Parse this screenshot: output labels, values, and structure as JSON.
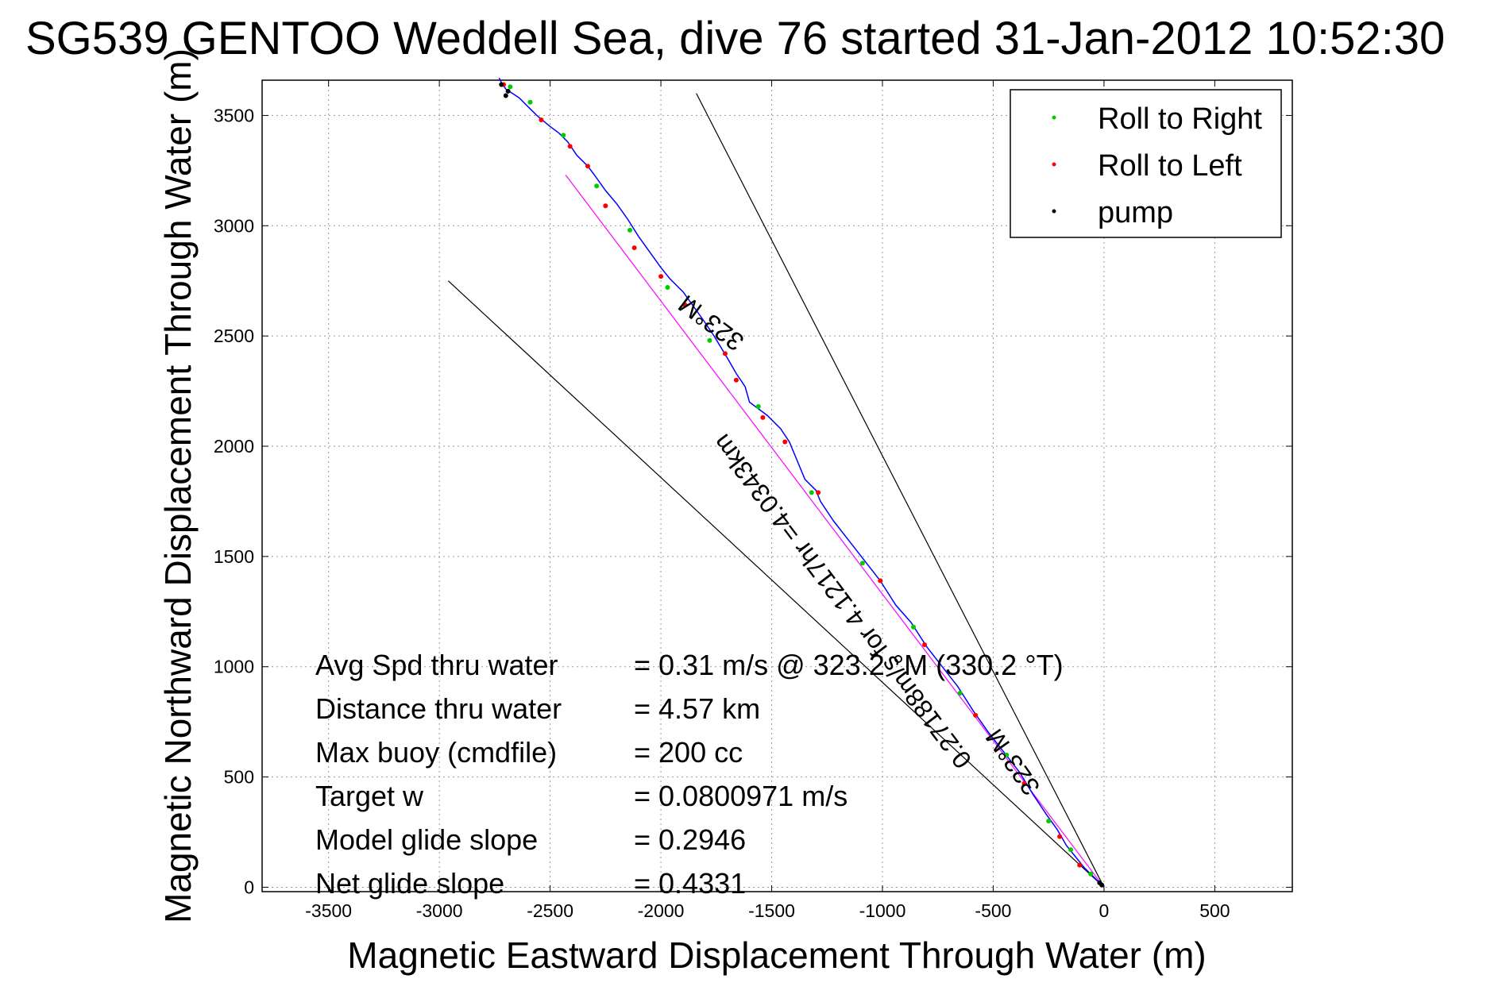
{
  "chart_data": {
    "type": "line",
    "title": "SG539 GENTOO Weddell Sea, dive 76 started 31-Jan-2012 10:52:30",
    "xlabel": "Magnetic Eastward Displacement Through Water (m)",
    "ylabel": "Magnetic Northward Displacement Through Water (m)",
    "xlim": [
      -3800,
      850
    ],
    "ylim": [
      -20,
      3660
    ],
    "xticks": [
      -3500,
      -3000,
      -2500,
      -2000,
      -1500,
      -1000,
      -500,
      0,
      500
    ],
    "yticks": [
      0,
      500,
      1000,
      1500,
      2000,
      2500,
      3000,
      3500
    ],
    "grid": true,
    "legend_position": "top-right",
    "legend": [
      {
        "label": "Roll to Right",
        "color": "#00cc00"
      },
      {
        "label": "Roll to Left",
        "color": "#ff0000"
      },
      {
        "label": "pump",
        "color": "#000000"
      }
    ],
    "track": {
      "color": "#0000ff",
      "x": [
        0,
        -40,
        -90,
        -130,
        -170,
        -210,
        -260,
        -320,
        -380,
        -450,
        -520,
        -590,
        -660,
        -730,
        -800,
        -870,
        -940,
        -1010,
        -1080,
        -1150,
        -1220,
        -1280,
        -1300,
        -1350,
        -1420,
        -1460,
        -1520,
        -1600,
        -1620,
        -1660,
        -1700,
        -1760,
        -1800,
        -1850,
        -1900,
        -1960,
        -2000,
        -2050,
        -2100,
        -2150,
        -2200,
        -2250,
        -2300,
        -2330,
        -2380,
        -2420,
        -2460,
        -2500,
        -2560,
        -2600,
        -2640,
        -2700,
        -2720,
        -2730
      ],
      "y": [
        0,
        40,
        90,
        140,
        190,
        260,
        330,
        420,
        520,
        610,
        700,
        800,
        910,
        1000,
        1090,
        1200,
        1280,
        1390,
        1480,
        1570,
        1660,
        1750,
        1800,
        1850,
        2020,
        2080,
        2140,
        2200,
        2270,
        2330,
        2400,
        2500,
        2560,
        2630,
        2700,
        2760,
        2810,
        2880,
        2950,
        3030,
        3100,
        3160,
        3230,
        3270,
        3320,
        3380,
        3420,
        3450,
        3500,
        3540,
        3580,
        3620,
        3650,
        3670
      ]
    },
    "roll_to_right": {
      "x": [
        -60,
        -150,
        -250,
        -440,
        -650,
        -860,
        -1090,
        -1320,
        -1560,
        -1780,
        -1970,
        -2140,
        -2290,
        -2440,
        -2590,
        -2680
      ],
      "y": [
        60,
        170,
        300,
        600,
        880,
        1180,
        1470,
        1790,
        2180,
        2480,
        2720,
        2980,
        3180,
        3410,
        3560,
        3630
      ]
    },
    "roll_to_left": {
      "x": [
        -110,
        -200,
        -360,
        -580,
        -810,
        -1010,
        -1290,
        -1440,
        -1540,
        -1660,
        -1710,
        -1890,
        -2000,
        -2120,
        -2250,
        -2330,
        -2410,
        -2540,
        -2710
      ],
      "y": [
        100,
        230,
        470,
        780,
        1100,
        1390,
        1790,
        2020,
        2130,
        2300,
        2420,
        2640,
        2770,
        2900,
        3090,
        3270,
        3360,
        3480,
        3640
      ]
    },
    "pump": {
      "x": [
        -2700,
        -2720,
        -2690,
        -10,
        -20
      ],
      "y": [
        3590,
        3640,
        3610,
        10,
        20
      ]
    },
    "glide_line": {
      "color": "#ff00ff",
      "x": [
        0,
        -2430
      ],
      "y": [
        0,
        3230
      ]
    },
    "bounding_lines": [
      {
        "x": [
          0,
          -1840
        ],
        "y": [
          0,
          3600
        ],
        "label": "323°M"
      },
      {
        "x": [
          0,
          -2960
        ],
        "y": [
          0,
          2750
        ],
        "label": "323°M"
      }
    ],
    "annotations": [
      {
        "text": "323°M",
        "x": -1750,
        "y": 2590,
        "rotation_deg": 217
      },
      {
        "text": "0.27188m/s for 4.1217hr =4.0343km",
        "x": -1150,
        "y": 1320,
        "rotation_deg": 233
      },
      {
        "text": "323°M",
        "x": -380,
        "y": 590,
        "rotation_deg": 235
      }
    ],
    "stats": [
      {
        "label": "Avg Spd thru water",
        "value": "=  0.31 m/s @ 323.2 °M (330.2 °T)"
      },
      {
        "label": "Distance thru water",
        "value": "=  4.57 km"
      },
      {
        "label": "Max buoy (cmdfile)",
        "value": "= 200 cc"
      },
      {
        "label": "Target w",
        "value": "= 0.0800971 m/s"
      },
      {
        "label": "Model glide slope",
        "value": "= 0.2946"
      },
      {
        "label": "Net glide slope",
        "value": "= 0.4331"
      }
    ]
  }
}
